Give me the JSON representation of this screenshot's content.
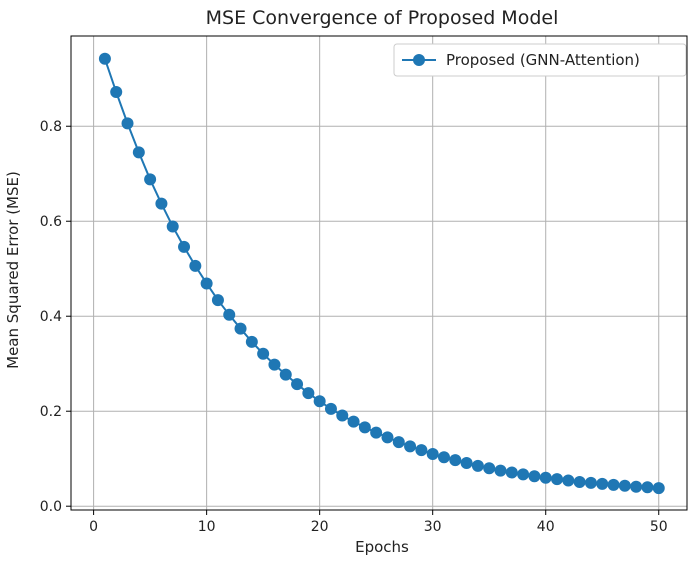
{
  "chart_data": {
    "type": "line",
    "title": "MSE Convergence of Proposed Model",
    "xlabel": "Epochs",
    "ylabel": "Mean Squared Error (MSE)",
    "xlim": [
      -2,
      52.5
    ],
    "ylim": [
      -0.008,
      0.99
    ],
    "xticks": [
      0,
      10,
      20,
      30,
      40,
      50
    ],
    "yticks": [
      0.0,
      0.2,
      0.4,
      0.6,
      0.8
    ],
    "xtick_labels": [
      "0",
      "10",
      "20",
      "30",
      "40",
      "50"
    ],
    "ytick_labels": [
      "0.0",
      "0.2",
      "0.4",
      "0.6",
      "0.8"
    ],
    "grid": true,
    "legend_position": "top-right",
    "series": [
      {
        "name": "Proposed (GNN-Attention)",
        "color": "#1f77b4",
        "marker": "circle",
        "x": [
          1,
          2,
          3,
          4,
          5,
          6,
          7,
          8,
          9,
          10,
          11,
          12,
          13,
          14,
          15,
          16,
          17,
          18,
          19,
          20,
          21,
          22,
          23,
          24,
          25,
          26,
          27,
          28,
          29,
          30,
          31,
          32,
          33,
          34,
          35,
          36,
          37,
          38,
          39,
          40,
          41,
          42,
          43,
          44,
          45,
          46,
          47,
          48,
          49,
          50
        ],
        "y": [
          0.942,
          0.872,
          0.806,
          0.745,
          0.688,
          0.637,
          0.589,
          0.546,
          0.506,
          0.469,
          0.434,
          0.403,
          0.374,
          0.346,
          0.321,
          0.298,
          0.277,
          0.257,
          0.238,
          0.221,
          0.205,
          0.191,
          0.178,
          0.166,
          0.155,
          0.145,
          0.135,
          0.126,
          0.118,
          0.11,
          0.103,
          0.097,
          0.091,
          0.085,
          0.08,
          0.075,
          0.071,
          0.067,
          0.063,
          0.06,
          0.057,
          0.054,
          0.051,
          0.049,
          0.047,
          0.045,
          0.043,
          0.041,
          0.04,
          0.038
        ]
      }
    ]
  }
}
